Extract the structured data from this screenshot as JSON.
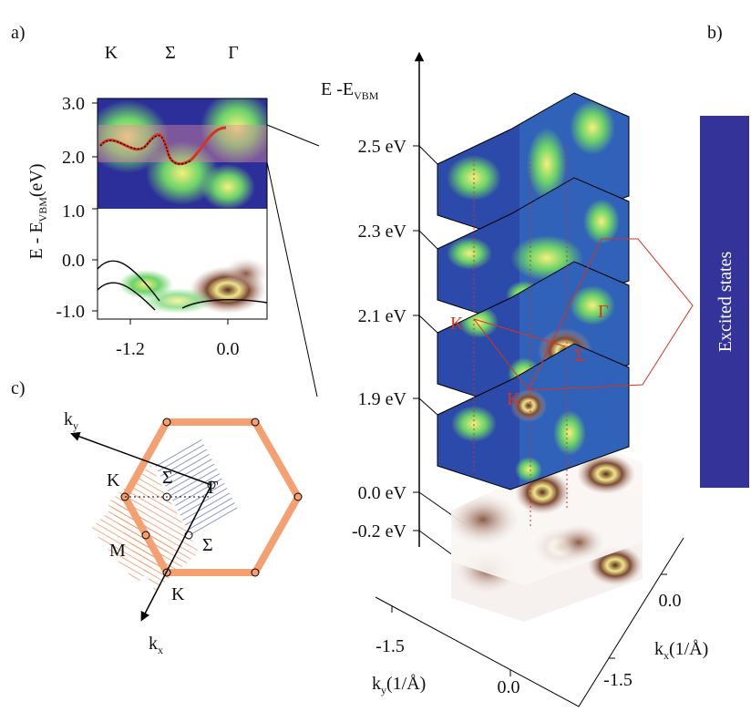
{
  "panel_labels": [
    "a)",
    "b)",
    "c)"
  ],
  "panel_a": {
    "top_labels": [
      "K",
      "Σ",
      "Γ"
    ],
    "y_ticks": [
      "3.0",
      "2.0",
      "1.0",
      "0.0",
      "-1.0"
    ],
    "y_label": {
      "main": "E - E",
      "sub": "VBM",
      "unit": "(eV)"
    },
    "x_ticks": [
      "-1.2",
      "0.0"
    ]
  },
  "panel_b": {
    "axis_label": {
      "main": "E -E",
      "sub": "VBM"
    },
    "energy_labels": [
      "2.5 eV",
      "2.3 eV",
      "2.1 eV",
      "1.9 eV",
      "0.0 eV",
      "-0.2 eV"
    ],
    "points": [
      "K",
      "Γ",
      "Σ",
      "K"
    ],
    "side_label": "Excited states",
    "ky_ticks": [
      "-1.5",
      "0.0"
    ],
    "ky_label": {
      "main": "k",
      "sub": "y",
      "unit": "(1/Å)"
    },
    "kx_ticks": [
      "0.0",
      "-1.5"
    ],
    "kx_label": {
      "main": "k",
      "sub": "x",
      "unit": "(1/Å)"
    }
  },
  "panel_c": {
    "ky_label": {
      "main": "k",
      "sub": "y"
    },
    "kx_label": {
      "main": "k",
      "sub": "x"
    },
    "points": [
      "K",
      "Σ",
      "Γ",
      "M",
      "Σ",
      "K"
    ]
  }
}
